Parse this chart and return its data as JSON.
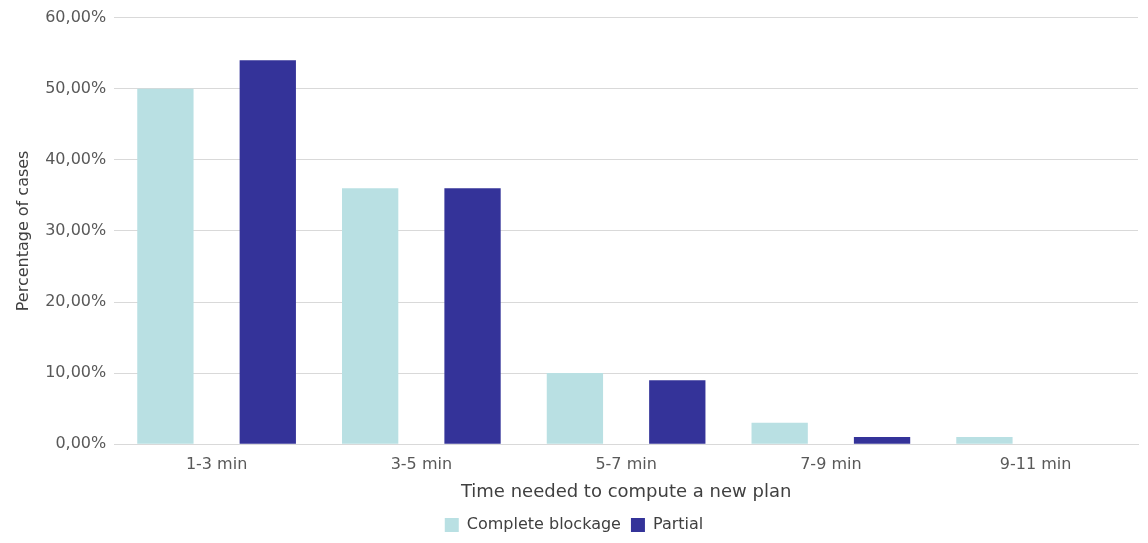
{
  "chart_data": {
    "type": "bar",
    "xlabel": "Time needed to compute a new plan",
    "ylabel": "Percentage of cases",
    "categories": [
      "1-3 min",
      "3-5 min",
      "5-7 min",
      "7-9 min",
      "9-11 min"
    ],
    "series": [
      {
        "name": "Complete blockage",
        "color": "#b9e0e3",
        "values": [
          50,
          36,
          10,
          3,
          1
        ]
      },
      {
        "name": "Partial",
        "color": "#343399",
        "values": [
          54,
          36,
          9,
          1,
          0
        ]
      }
    ],
    "ylim": [
      0,
      60
    ],
    "yticks": [
      {
        "value": 0,
        "label": "0,00%"
      },
      {
        "value": 10,
        "label": "10,00%"
      },
      {
        "value": 20,
        "label": "20,00%"
      },
      {
        "value": 30,
        "label": "30,00%"
      },
      {
        "value": 40,
        "label": "40,00%"
      },
      {
        "value": 50,
        "label": "50,00%"
      },
      {
        "value": 60,
        "label": "60,00%"
      }
    ],
    "grid": "y",
    "legend": "bottom"
  }
}
